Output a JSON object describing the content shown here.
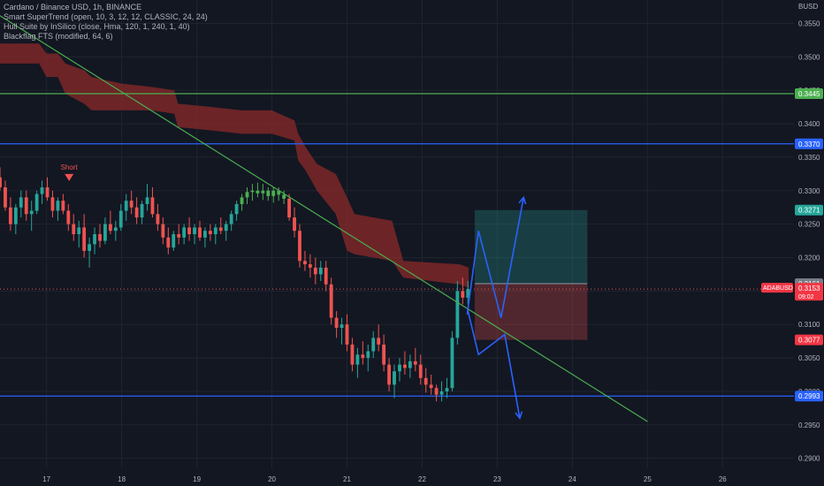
{
  "legend": [
    "Cardano / Binance USD, 1h, BINANCE",
    "Smart SuperTrend (open, 10, 3, 12, 12, CLASSIC, 24, 24)",
    "Hull Suite by InSilico (close, Hma, 120, 1, 240, 1, 40)",
    "Blackflag FTS (modified, 64, 6)"
  ],
  "colors": {
    "background": "#131722",
    "grid": "#1f2430",
    "up_candle": "#26a69a",
    "down_candle": "#ef5350",
    "trend_up": "#4caf50",
    "band": "#8b2a2a",
    "green_line": "#4caf50",
    "blue_line": "#2962ff",
    "forecast": "#2962ff",
    "axis_text": "#b2b5be"
  },
  "chart_data": {
    "type": "candlestick",
    "currency": "BUSD",
    "symbol_label": "ADABUSD",
    "y_ticks": [
      "0.3550",
      "0.3500",
      "0.3450",
      "0.3400",
      "0.3350",
      "0.3300",
      "0.3250",
      "0.3200",
      "0.3150",
      "0.3100",
      "0.3050",
      "0.3000",
      "0.2950",
      "0.2900"
    ],
    "x_ticks": [
      "17",
      "18",
      "19",
      "20",
      "21",
      "22",
      "23",
      "24",
      "25",
      "26"
    ],
    "ylim": [
      0.2885,
      0.3585
    ],
    "xlim": [
      16.38,
      26.95
    ],
    "price_labels": [
      {
        "value": 0.3445,
        "label": "0.3445",
        "color": "#4caf50"
      },
      {
        "value": 0.337,
        "label": "0.3370",
        "color": "#2962ff"
      },
      {
        "value": 0.3271,
        "label": "0.3271",
        "color": "#26a69a"
      },
      {
        "value": 0.3161,
        "label": "0.3161",
        "color": "#787b86"
      },
      {
        "value": 0.3077,
        "label": "0.3077",
        "color": "#f23645"
      },
      {
        "value": 0.2993,
        "label": "0.2993",
        "color": "#2962ff"
      }
    ],
    "current_price": {
      "value": 0.3153,
      "label": "0.3153",
      "countdown": "09:02",
      "color": "#f23645"
    },
    "horizontal_lines": [
      {
        "value": 0.3445,
        "color": "#4caf50"
      },
      {
        "value": 0.337,
        "color": "#2962ff"
      },
      {
        "value": 0.2993,
        "color": "#2962ff"
      }
    ],
    "trendline": {
      "from": [
        16.33,
        0.3565
      ],
      "to": [
        25.0,
        0.2955
      ]
    },
    "signal": {
      "text": "Short",
      "x": 17.3,
      "y": 0.3317
    },
    "position": {
      "x_start": 22.7,
      "x_end": 24.2,
      "entry": 0.3161,
      "target": 0.3271,
      "stop": 0.3077
    },
    "forecast_up": [
      [
        22.6,
        0.3115
      ],
      [
        22.75,
        0.324
      ],
      [
        23.05,
        0.311
      ],
      [
        23.35,
        0.329
      ]
    ],
    "forecast_down": [
      [
        22.6,
        0.3125
      ],
      [
        22.75,
        0.3055
      ],
      [
        23.1,
        0.3085
      ],
      [
        23.3,
        0.296
      ]
    ],
    "supertrend_band": [
      [
        16.38,
        0.352,
        0.349
      ],
      [
        16.9,
        0.352,
        0.349
      ],
      [
        17.0,
        0.3505,
        0.347
      ],
      [
        17.15,
        0.3505,
        0.347
      ],
      [
        17.25,
        0.349,
        0.3445
      ],
      [
        17.5,
        0.348,
        0.343
      ],
      [
        17.6,
        0.347,
        0.342
      ],
      [
        18.0,
        0.346,
        0.342
      ],
      [
        18.4,
        0.3455,
        0.342
      ],
      [
        18.7,
        0.345,
        0.3415
      ],
      [
        18.75,
        0.343,
        0.3395
      ],
      [
        19.2,
        0.3425,
        0.339
      ],
      [
        19.6,
        0.342,
        0.3385
      ],
      [
        20.0,
        0.342,
        0.3385
      ],
      [
        20.3,
        0.3405,
        0.3375
      ],
      [
        20.35,
        0.3385,
        0.3345
      ],
      [
        20.45,
        0.3365,
        0.333
      ],
      [
        20.6,
        0.334,
        0.33
      ],
      [
        20.85,
        0.3325,
        0.3265
      ],
      [
        21.0,
        0.329,
        0.321
      ],
      [
        21.1,
        0.3265,
        0.3205
      ],
      [
        21.6,
        0.3255,
        0.3195
      ],
      [
        21.75,
        0.3195,
        0.317
      ],
      [
        22.5,
        0.319,
        0.316
      ],
      [
        22.62,
        0.3185,
        0.3155
      ]
    ],
    "candles": [
      [
        16.38,
        0.332,
        0.3335,
        0.33,
        0.3305
      ],
      [
        16.45,
        0.3305,
        0.3315,
        0.327,
        0.3275
      ],
      [
        16.52,
        0.3275,
        0.329,
        0.324,
        0.325
      ],
      [
        16.59,
        0.325,
        0.328,
        0.3235,
        0.3275
      ],
      [
        16.66,
        0.3275,
        0.33,
        0.326,
        0.329
      ],
      [
        16.73,
        0.329,
        0.33,
        0.3255,
        0.3265
      ],
      [
        16.8,
        0.3265,
        0.3285,
        0.324,
        0.327
      ],
      [
        16.87,
        0.327,
        0.33,
        0.3265,
        0.3295
      ],
      [
        16.94,
        0.3295,
        0.3315,
        0.328,
        0.3305
      ],
      [
        17.01,
        0.3305,
        0.332,
        0.3285,
        0.329
      ],
      [
        17.08,
        0.329,
        0.33,
        0.326,
        0.327
      ],
      [
        17.15,
        0.327,
        0.329,
        0.3255,
        0.3285
      ],
      [
        17.22,
        0.3285,
        0.3295,
        0.3265,
        0.327
      ],
      [
        17.29,
        0.327,
        0.328,
        0.324,
        0.325
      ],
      [
        17.36,
        0.325,
        0.3265,
        0.3225,
        0.3235
      ],
      [
        17.43,
        0.3235,
        0.3255,
        0.3215,
        0.3245
      ],
      [
        17.5,
        0.3245,
        0.3265,
        0.32,
        0.321
      ],
      [
        17.57,
        0.321,
        0.323,
        0.3185,
        0.322
      ],
      [
        17.64,
        0.322,
        0.3245,
        0.3205,
        0.3235
      ],
      [
        17.71,
        0.3235,
        0.325,
        0.3215,
        0.3225
      ],
      [
        17.78,
        0.3225,
        0.326,
        0.322,
        0.325
      ],
      [
        17.85,
        0.325,
        0.327,
        0.3235,
        0.324
      ],
      [
        17.92,
        0.324,
        0.3255,
        0.3225,
        0.3245
      ],
      [
        17.99,
        0.3245,
        0.328,
        0.324,
        0.327
      ],
      [
        18.06,
        0.327,
        0.3295,
        0.3255,
        0.3285
      ],
      [
        18.13,
        0.3285,
        0.33,
        0.3265,
        0.3275
      ],
      [
        18.2,
        0.3275,
        0.329,
        0.325,
        0.326
      ],
      [
        18.27,
        0.326,
        0.3285,
        0.325,
        0.328
      ],
      [
        18.34,
        0.328,
        0.331,
        0.327,
        0.329
      ],
      [
        18.41,
        0.329,
        0.3305,
        0.326,
        0.3265
      ],
      [
        18.48,
        0.3265,
        0.328,
        0.324,
        0.325
      ],
      [
        18.55,
        0.325,
        0.326,
        0.322,
        0.323
      ],
      [
        18.62,
        0.323,
        0.3245,
        0.3205,
        0.3215
      ],
      [
        18.69,
        0.3215,
        0.324,
        0.321,
        0.3235
      ],
      [
        18.76,
        0.3235,
        0.325,
        0.322,
        0.323
      ],
      [
        18.83,
        0.323,
        0.325,
        0.322,
        0.3245
      ],
      [
        18.9,
        0.3245,
        0.326,
        0.3225,
        0.3235
      ],
      [
        18.97,
        0.3235,
        0.325,
        0.322,
        0.3245
      ],
      [
        19.04,
        0.3245,
        0.3255,
        0.3225,
        0.323
      ],
      [
        19.11,
        0.323,
        0.3245,
        0.3215,
        0.324
      ],
      [
        19.18,
        0.324,
        0.325,
        0.3225,
        0.3235
      ],
      [
        19.25,
        0.3235,
        0.325,
        0.322,
        0.3245
      ],
      [
        19.32,
        0.3245,
        0.326,
        0.3235,
        0.324
      ],
      [
        19.39,
        0.324,
        0.3255,
        0.3225,
        0.325
      ],
      [
        19.46,
        0.325,
        0.327,
        0.324,
        0.3265
      ],
      [
        19.53,
        0.3265,
        0.3285,
        0.3255,
        0.328
      ],
      [
        19.6,
        0.328,
        0.3295,
        0.327,
        0.329
      ],
      [
        19.67,
        0.329,
        0.3305,
        0.328,
        0.3298
      ],
      [
        19.74,
        0.3298,
        0.331,
        0.3285,
        0.33
      ],
      [
        19.81,
        0.33,
        0.3312,
        0.329,
        0.3296
      ],
      [
        19.88,
        0.3296,
        0.331,
        0.3286,
        0.33
      ],
      [
        19.95,
        0.33,
        0.3305,
        0.3285,
        0.3292
      ],
      [
        20.02,
        0.3292,
        0.3305,
        0.3282,
        0.33
      ],
      [
        20.09,
        0.33,
        0.3305,
        0.3285,
        0.3294
      ],
      [
        20.16,
        0.3294,
        0.33,
        0.328,
        0.3288
      ],
      [
        20.23,
        0.3288,
        0.3295,
        0.3255,
        0.326
      ],
      [
        20.3,
        0.326,
        0.3275,
        0.323,
        0.324
      ],
      [
        20.37,
        0.324,
        0.325,
        0.3185,
        0.3195
      ],
      [
        20.44,
        0.3195,
        0.321,
        0.318,
        0.319
      ],
      [
        20.51,
        0.319,
        0.3205,
        0.317,
        0.3185
      ],
      [
        20.58,
        0.3185,
        0.32,
        0.316,
        0.3175
      ],
      [
        20.65,
        0.3175,
        0.3195,
        0.3165,
        0.3185
      ],
      [
        20.72,
        0.3185,
        0.3195,
        0.315,
        0.316
      ],
      [
        20.79,
        0.316,
        0.317,
        0.31,
        0.311
      ],
      [
        20.86,
        0.311,
        0.312,
        0.308,
        0.3095
      ],
      [
        20.93,
        0.3095,
        0.311,
        0.307,
        0.31
      ],
      [
        21.0,
        0.31,
        0.3115,
        0.306,
        0.307
      ],
      [
        21.07,
        0.307,
        0.308,
        0.303,
        0.304
      ],
      [
        21.14,
        0.304,
        0.3065,
        0.302,
        0.3055
      ],
      [
        21.21,
        0.3055,
        0.3075,
        0.304,
        0.305
      ],
      [
        21.28,
        0.305,
        0.307,
        0.303,
        0.306
      ],
      [
        21.35,
        0.306,
        0.309,
        0.305,
        0.308
      ],
      [
        21.42,
        0.308,
        0.31,
        0.306,
        0.307
      ],
      [
        21.49,
        0.307,
        0.3085,
        0.303,
        0.304
      ],
      [
        21.56,
        0.304,
        0.305,
        0.3,
        0.301
      ],
      [
        21.63,
        0.301,
        0.304,
        0.299,
        0.303
      ],
      [
        21.7,
        0.303,
        0.305,
        0.3015,
        0.304
      ],
      [
        21.77,
        0.304,
        0.306,
        0.3025,
        0.3035
      ],
      [
        21.84,
        0.3035,
        0.3055,
        0.302,
        0.3045
      ],
      [
        21.91,
        0.3045,
        0.3065,
        0.303,
        0.304
      ],
      [
        21.98,
        0.304,
        0.3055,
        0.301,
        0.302
      ],
      [
        22.05,
        0.302,
        0.3035,
        0.2998,
        0.301
      ],
      [
        22.12,
        0.301,
        0.3025,
        0.2995,
        0.3005
      ],
      [
        22.19,
        0.3005,
        0.301,
        0.2985,
        0.2995
      ],
      [
        22.26,
        0.2995,
        0.3015,
        0.2985,
        0.3
      ],
      [
        22.33,
        0.3,
        0.302,
        0.299,
        0.3005
      ],
      [
        22.4,
        0.3005,
        0.309,
        0.3,
        0.308
      ],
      [
        22.47,
        0.308,
        0.3165,
        0.307,
        0.315
      ],
      [
        22.54,
        0.315,
        0.317,
        0.313,
        0.314
      ],
      [
        22.61,
        0.314,
        0.3165,
        0.313,
        0.3153
      ]
    ]
  }
}
